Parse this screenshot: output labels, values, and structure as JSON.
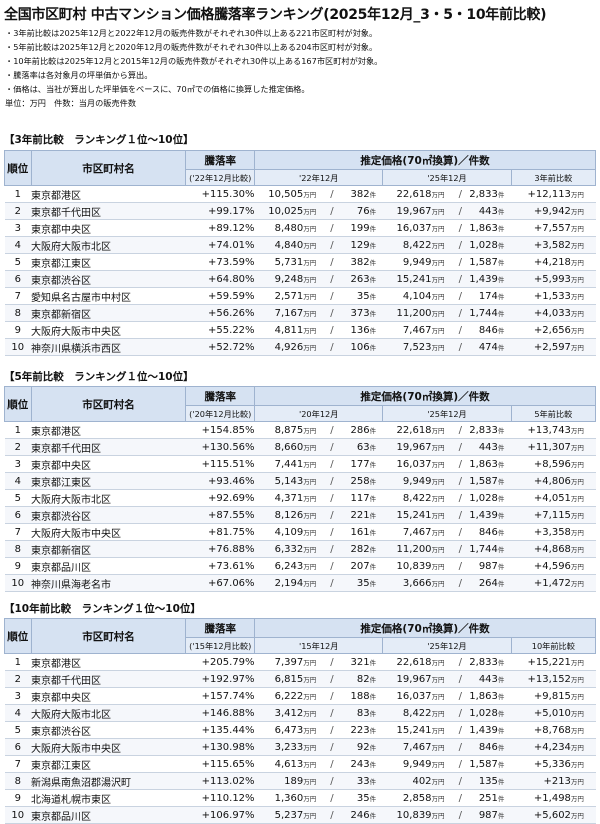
{
  "title": "全国市区町村 中古マンション価格騰落率ランキング(2025年12月_3・5・10年前比較)",
  "notes": [
    "・3年前比較は2025年12月と2022年12月の販売件数がそれぞれ30件以上ある221市区町村が対象。",
    "・5年前比較は2025年12月と2020年12月の販売件数がそれぞれ30件以上ある204市区町村が対象。",
    "・10年前比較は2025年12月と2015年12月の販売件数がそれぞれ30件以上ある167市区町村が対象。",
    "・騰落率は各対象月の坪単価から算出。",
    "・価格は、当社が算出した坪単価をベースに、70㎡での価格に換算した推定価格。",
    "単位：万円　件数：当月の販売件数"
  ],
  "labels": {
    "rank": "順位",
    "city": "市区町村名",
    "rate": "騰落率",
    "price_header": "推定価格(70㎡換算)／件数",
    "manyen": "万円",
    "ken": "件",
    "slash": "/"
  },
  "sections": [
    {
      "title": "【3年前比較　ランキング１位〜10位】",
      "rate_sub": "('22年12月比較)",
      "col_past": "'22年12月",
      "col_now": "'25年12月",
      "col_diff": "3年前比較",
      "rows": [
        {
          "rank": "1",
          "city": "東京都港区",
          "rate": "+115.30%",
          "p1": "10,505",
          "c1": "382",
          "p2": "22,618",
          "c2": "2,833",
          "diff": "+12,113"
        },
        {
          "rank": "2",
          "city": "東京都千代田区",
          "rate": "+99.17%",
          "p1": "10,025",
          "c1": "76",
          "p2": "19,967",
          "c2": "443",
          "diff": "+9,942"
        },
        {
          "rank": "3",
          "city": "東京都中央区",
          "rate": "+89.12%",
          "p1": "8,480",
          "c1": "199",
          "p2": "16,037",
          "c2": "1,863",
          "diff": "+7,557"
        },
        {
          "rank": "4",
          "city": "大阪府大阪市北区",
          "rate": "+74.01%",
          "p1": "4,840",
          "c1": "129",
          "p2": "8,422",
          "c2": "1,028",
          "diff": "+3,582"
        },
        {
          "rank": "5",
          "city": "東京都江東区",
          "rate": "+73.59%",
          "p1": "5,731",
          "c1": "382",
          "p2": "9,949",
          "c2": "1,587",
          "diff": "+4,218"
        },
        {
          "rank": "6",
          "city": "東京都渋谷区",
          "rate": "+64.80%",
          "p1": "9,248",
          "c1": "263",
          "p2": "15,241",
          "c2": "1,439",
          "diff": "+5,993"
        },
        {
          "rank": "7",
          "city": "愛知県名古屋市中村区",
          "rate": "+59.59%",
          "p1": "2,571",
          "c1": "35",
          "p2": "4,104",
          "c2": "174",
          "diff": "+1,533"
        },
        {
          "rank": "8",
          "city": "東京都新宿区",
          "rate": "+56.26%",
          "p1": "7,167",
          "c1": "373",
          "p2": "11,200",
          "c2": "1,744",
          "diff": "+4,033"
        },
        {
          "rank": "9",
          "city": "大阪府大阪市中央区",
          "rate": "+55.22%",
          "p1": "4,811",
          "c1": "136",
          "p2": "7,467",
          "c2": "846",
          "diff": "+2,656"
        },
        {
          "rank": "10",
          "city": "神奈川県横浜市西区",
          "rate": "+52.72%",
          "p1": "4,926",
          "c1": "106",
          "p2": "7,523",
          "c2": "474",
          "diff": "+2,597"
        }
      ]
    },
    {
      "title": "【5年前比較　ランキング１位〜10位】",
      "rate_sub": "('20年12月比較)",
      "col_past": "'20年12月",
      "col_now": "'25年12月",
      "col_diff": "5年前比較",
      "rows": [
        {
          "rank": "1",
          "city": "東京都港区",
          "rate": "+154.85%",
          "p1": "8,875",
          "c1": "286",
          "p2": "22,618",
          "c2": "2,833",
          "diff": "+13,743"
        },
        {
          "rank": "2",
          "city": "東京都千代田区",
          "rate": "+130.56%",
          "p1": "8,660",
          "c1": "63",
          "p2": "19,967",
          "c2": "443",
          "diff": "+11,307"
        },
        {
          "rank": "3",
          "city": "東京都中央区",
          "rate": "+115.51%",
          "p1": "7,441",
          "c1": "177",
          "p2": "16,037",
          "c2": "1,863",
          "diff": "+8,596"
        },
        {
          "rank": "4",
          "city": "東京都江東区",
          "rate": "+93.46%",
          "p1": "5,143",
          "c1": "258",
          "p2": "9,949",
          "c2": "1,587",
          "diff": "+4,806"
        },
        {
          "rank": "5",
          "city": "大阪府大阪市北区",
          "rate": "+92.69%",
          "p1": "4,371",
          "c1": "117",
          "p2": "8,422",
          "c2": "1,028",
          "diff": "+4,051"
        },
        {
          "rank": "6",
          "city": "東京都渋谷区",
          "rate": "+87.55%",
          "p1": "8,126",
          "c1": "221",
          "p2": "15,241",
          "c2": "1,439",
          "diff": "+7,115"
        },
        {
          "rank": "7",
          "city": "大阪府大阪市中央区",
          "rate": "+81.75%",
          "p1": "4,109",
          "c1": "161",
          "p2": "7,467",
          "c2": "846",
          "diff": "+3,358"
        },
        {
          "rank": "8",
          "city": "東京都新宿区",
          "rate": "+76.88%",
          "p1": "6,332",
          "c1": "282",
          "p2": "11,200",
          "c2": "1,744",
          "diff": "+4,868"
        },
        {
          "rank": "9",
          "city": "東京都品川区",
          "rate": "+73.61%",
          "p1": "6,243",
          "c1": "207",
          "p2": "10,839",
          "c2": "987",
          "diff": "+4,596"
        },
        {
          "rank": "10",
          "city": "神奈川県海老名市",
          "rate": "+67.06%",
          "p1": "2,194",
          "c1": "35",
          "p2": "3,666",
          "c2": "264",
          "diff": "+1,472"
        }
      ]
    },
    {
      "title": "【10年前比較　ランキング１位〜10位】",
      "rate_sub": "('15年12月比較)",
      "col_past": "'15年12月",
      "col_now": "'25年12月",
      "col_diff": "10年前比較",
      "rows": [
        {
          "rank": "1",
          "city": "東京都港区",
          "rate": "+205.79%",
          "p1": "7,397",
          "c1": "321",
          "p2": "22,618",
          "c2": "2,833",
          "diff": "+15,221"
        },
        {
          "rank": "2",
          "city": "東京都千代田区",
          "rate": "+192.97%",
          "p1": "6,815",
          "c1": "82",
          "p2": "19,967",
          "c2": "443",
          "diff": "+13,152"
        },
        {
          "rank": "3",
          "city": "東京都中央区",
          "rate": "+157.74%",
          "p1": "6,222",
          "c1": "188",
          "p2": "16,037",
          "c2": "1,863",
          "diff": "+9,815"
        },
        {
          "rank": "4",
          "city": "大阪府大阪市北区",
          "rate": "+146.88%",
          "p1": "3,412",
          "c1": "83",
          "p2": "8,422",
          "c2": "1,028",
          "diff": "+5,010"
        },
        {
          "rank": "5",
          "city": "東京都渋谷区",
          "rate": "+135.44%",
          "p1": "6,473",
          "c1": "223",
          "p2": "15,241",
          "c2": "1,439",
          "diff": "+8,768"
        },
        {
          "rank": "6",
          "city": "大阪府大阪市中央区",
          "rate": "+130.98%",
          "p1": "3,233",
          "c1": "92",
          "p2": "7,467",
          "c2": "846",
          "diff": "+4,234"
        },
        {
          "rank": "7",
          "city": "東京都江東区",
          "rate": "+115.65%",
          "p1": "4,613",
          "c1": "243",
          "p2": "9,949",
          "c2": "1,587",
          "diff": "+5,336"
        },
        {
          "rank": "8",
          "city": "新潟県南魚沼郡湯沢町",
          "rate": "+113.02%",
          "p1": "189",
          "c1": "33",
          "p2": "402",
          "c2": "135",
          "diff": "+213"
        },
        {
          "rank": "9",
          "city": "北海道札幌市東区",
          "rate": "+110.12%",
          "p1": "1,360",
          "c1": "35",
          "p2": "2,858",
          "c2": "251",
          "diff": "+1,498"
        },
        {
          "rank": "10",
          "city": "東京都品川区",
          "rate": "+106.97%",
          "p1": "5,237",
          "c1": "246",
          "p2": "10,839",
          "c2": "987",
          "diff": "+5,602"
        }
      ]
    }
  ]
}
